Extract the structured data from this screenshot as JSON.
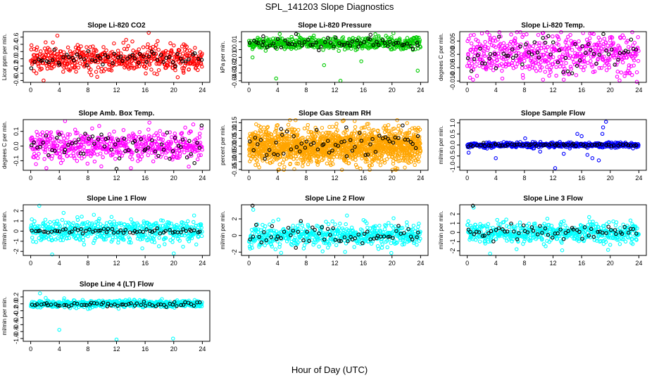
{
  "figure": {
    "title": "SPL_141203  Slope Diagnostics",
    "xlabel": "Hour of Day (UTC)"
  },
  "chart_data": [
    {
      "type": "scatter",
      "title": "Slope Li-820 CO2",
      "ylabel": "Licor ppm per min.",
      "xlim": [
        0,
        24
      ],
      "xticks": [
        0,
        4,
        8,
        12,
        16,
        20,
        24
      ],
      "ylim": [
        -0.65,
        0.75
      ],
      "yticks": [
        -0.6,
        -0.4,
        -0.2,
        0.0,
        0.2,
        0.4,
        0.6
      ],
      "ytick_labels": [
        "-0.6",
        "-0.4",
        "-0.2",
        "0.0",
        "0.2",
        "0.4",
        "0.6"
      ],
      "series": [
        {
          "color": "#ff0000",
          "n": 520,
          "center": 0.0,
          "spread": 0.17,
          "outliers": [
            [
              0.8,
              -0.4
            ],
            [
              1.8,
              -0.6
            ],
            [
              3.1,
              0.45
            ],
            [
              16.5,
              0.72
            ],
            [
              21.4,
              0.4
            ],
            [
              9.3,
              -0.5
            ]
          ]
        },
        {
          "color": "#000000",
          "n": 60,
          "center": 0.0,
          "spread": 0.12,
          "outliers": []
        }
      ]
    },
    {
      "type": "scatter",
      "title": "Slope Li-820 Pressure",
      "ylabel": "kPa per min.",
      "xlim": [
        0,
        24
      ],
      "xticks": [
        0,
        4,
        8,
        12,
        16,
        20,
        24
      ],
      "ylim": [
        -0.042,
        0.023
      ],
      "yticks": [
        -0.04,
        -0.03,
        -0.02,
        -0.01,
        0.0,
        0.01
      ],
      "ytick_labels": [
        "-0.04",
        "-0.03",
        "-0.02",
        "-0.01",
        "0",
        "0.01"
      ],
      "series": [
        {
          "color": "#00cc00",
          "n": 520,
          "center": 0.008,
          "spread": 0.004,
          "outliers": [
            [
              0.5,
              -0.01
            ],
            [
              3.8,
              -0.037
            ],
            [
              10.5,
              -0.02
            ],
            [
              12.8,
              -0.04
            ],
            [
              15.7,
              -0.015
            ],
            [
              23.6,
              -0.027
            ],
            [
              4.3,
              0.02
            ],
            [
              20.2,
              0.021
            ]
          ]
        },
        {
          "color": "#000000",
          "n": 60,
          "center": 0.007,
          "spread": 0.004,
          "outliers": [
            [
              2.0,
              0.017
            ],
            [
              6.6,
              0.02
            ],
            [
              17.0,
              0.019
            ]
          ]
        }
      ]
    },
    {
      "type": "scatter",
      "title": "Slope Li-820 Temp.",
      "ylabel": "degrees C per min.",
      "xlim": [
        0,
        24
      ],
      "xticks": [
        0,
        4,
        8,
        12,
        16,
        20,
        24
      ],
      "ylim": [
        -0.0105,
        0.0085
      ],
      "yticks": [
        -0.01,
        -0.005,
        0.0,
        0.005
      ],
      "ytick_labels": [
        "-0.010",
        "-0.005",
        "0.000",
        "0.005"
      ],
      "series": [
        {
          "color": "#ff00ff",
          "n": 520,
          "center": 0.0,
          "spread": 0.004,
          "outliers": [
            [
              4.5,
              0.0083
            ],
            [
              8.3,
              0.0075
            ],
            [
              10.6,
              -0.0095
            ],
            [
              13.5,
              -0.0095
            ],
            [
              16.2,
              0.008
            ],
            [
              21.3,
              -0.0098
            ]
          ]
        },
        {
          "color": "#000000",
          "n": 60,
          "center": 0.0,
          "spread": 0.003,
          "outliers": []
        }
      ]
    },
    {
      "type": "scatter",
      "title": "Slope Amb. Box Temp.",
      "ylabel": "degrees C per min.",
      "xlim": [
        0,
        24
      ],
      "xticks": [
        0,
        4,
        8,
        12,
        16,
        20,
        24
      ],
      "ylim": [
        -0.165,
        0.18
      ],
      "yticks": [
        -0.1,
        0.0,
        0.1
      ],
      "ytick_labels": [
        "-0.1",
        "0.0",
        "0.1"
      ],
      "series": [
        {
          "color": "#ff00ff",
          "n": 520,
          "center": 0.0,
          "spread": 0.05,
          "outliers": [
            [
              4.8,
              0.17
            ],
            [
              2.2,
              -0.15
            ],
            [
              16.6,
              0.16
            ],
            [
              22.1,
              -0.14
            ]
          ]
        },
        {
          "color": "#000000",
          "n": 60,
          "center": 0.0,
          "spread": 0.05,
          "outliers": [
            [
              12.0,
              -0.155
            ],
            [
              23.9,
              0.14
            ]
          ]
        }
      ]
    },
    {
      "type": "scatter",
      "title": "Slope Gas Stream RH",
      "ylabel": "percent per min.",
      "xlim": [
        0,
        24
      ],
      "xticks": [
        0,
        4,
        8,
        12,
        16,
        20,
        24
      ],
      "ylim": [
        -0.155,
        0.17
      ],
      "yticks": [
        -0.15,
        -0.1,
        -0.05,
        0.0,
        0.05,
        0.1,
        0.15
      ],
      "ytick_labels": [
        "-0.15",
        "-0.10",
        "-0.05",
        "0.00",
        "0.05",
        "0.10",
        "0.15"
      ],
      "series": [
        {
          "color": "#ffa500",
          "n": 1500,
          "center": 0.0,
          "spread": 0.055,
          "outliers": [
            [
              4.2,
              -0.15
            ],
            [
              1.0,
              0.14
            ],
            [
              13.1,
              0.16
            ],
            [
              20.5,
              -0.14
            ]
          ]
        },
        {
          "color": "#000000",
          "n": 60,
          "center": 0.0,
          "spread": 0.045,
          "outliers": [
            [
              4.5,
              0.11
            ],
            [
              13.6,
              0.12
            ]
          ]
        }
      ]
    },
    {
      "type": "scatter",
      "title": "Slope Sample Flow",
      "ylabel": "ml/min per min.",
      "xlim": [
        0,
        24
      ],
      "xticks": [
        0,
        4,
        8,
        12,
        16,
        20,
        24
      ],
      "ylim": [
        -1.15,
        1.15
      ],
      "yticks": [
        -1.0,
        -0.5,
        0.0,
        0.5,
        1.0
      ],
      "ytick_labels": [
        "-1.0",
        "-0.5",
        "0.0",
        "0.5",
        "1.0"
      ],
      "series": [
        {
          "color": "#0000ff",
          "n": 520,
          "center": 0.0,
          "spread": 0.06,
          "outliers": [
            [
              0.2,
              -0.35
            ],
            [
              4.0,
              -0.6
            ],
            [
              12.3,
              -1.05
            ],
            [
              15.4,
              0.5
            ],
            [
              16.0,
              0.4
            ],
            [
              17.5,
              -0.6
            ],
            [
              18.9,
              0.5
            ],
            [
              19.4,
              1.05
            ],
            [
              18.4,
              -0.7
            ],
            [
              13.5,
              -0.4
            ],
            [
              19.0,
              0.8
            ],
            [
              16.8,
              -0.45
            ],
            [
              8.1,
              0.3
            ],
            [
              10.2,
              -0.3
            ]
          ]
        },
        {
          "color": "#000000",
          "n": 60,
          "center": 0.0,
          "spread": 0.04,
          "outliers": []
        }
      ]
    },
    {
      "type": "scatter",
      "title": "Slope Line 1 Flow",
      "ylabel": "ml/min per min.",
      "xlim": [
        0,
        24
      ],
      "xticks": [
        0,
        4,
        8,
        12,
        16,
        20,
        24
      ],
      "ylim": [
        -2.4,
        2.6
      ],
      "yticks": [
        -2,
        -1,
        0,
        1,
        2
      ],
      "ytick_labels": [
        "-2",
        "-1",
        "0",
        "1",
        "2"
      ],
      "series": [
        {
          "color": "#00ffff",
          "n": 520,
          "center": 0.0,
          "spread": 0.55,
          "outliers": [
            [
              1.2,
              2.5
            ],
            [
              3.0,
              -2.3
            ],
            [
              4.6,
              1.8
            ],
            [
              20.0,
              -2.2
            ],
            [
              11.3,
              1.4
            ],
            [
              15.6,
              -1.7
            ]
          ]
        },
        {
          "color": "#000000",
          "n": 60,
          "center": 0.0,
          "spread": 0.12,
          "outliers": []
        }
      ]
    },
    {
      "type": "scatter",
      "title": "Slope Line 2 Flow",
      "ylabel": "ml/min per min.",
      "xlim": [
        0,
        24
      ],
      "xticks": [
        0,
        4,
        8,
        12,
        16,
        20,
        24
      ],
      "ylim": [
        -2.4,
        3.7
      ],
      "yticks": [
        -2,
        0,
        2
      ],
      "ytick_labels": [
        "-2",
        "0",
        "2"
      ],
      "series": [
        {
          "color": "#00ffff",
          "n": 520,
          "center": 0.0,
          "spread": 0.65,
          "outliers": [
            [
              0.6,
              3.1
            ],
            [
              13.7,
              2.4
            ],
            [
              19.9,
              -2.1
            ],
            [
              10.3,
              -1.9
            ]
          ]
        },
        {
          "color": "#000000",
          "n": 60,
          "center": 0.0,
          "spread": 0.6,
          "outliers": [
            [
              0.5,
              3.6
            ]
          ]
        }
      ]
    },
    {
      "type": "scatter",
      "title": "Slope Line 3 Flow",
      "ylabel": "ml/min per min.",
      "xlim": [
        0,
        24
      ],
      "xticks": [
        0,
        4,
        8,
        12,
        16,
        20,
        24
      ],
      "ylim": [
        -2.5,
        3.0
      ],
      "yticks": [
        -2,
        -1,
        0,
        1,
        2
      ],
      "ytick_labels": [
        "-2",
        "-1",
        "0",
        "1",
        "2"
      ],
      "series": [
        {
          "color": "#00ffff",
          "n": 520,
          "center": 0.0,
          "spread": 0.55,
          "outliers": [
            [
              0.9,
              2.7
            ],
            [
              3.2,
              -2.3
            ],
            [
              19.7,
              -1.9
            ]
          ]
        },
        {
          "color": "#000000",
          "n": 60,
          "center": 0.0,
          "spread": 0.45,
          "outliers": [
            [
              0.8,
              2.9
            ]
          ]
        }
      ]
    },
    {
      "type": "scatter",
      "title": "Slope Line 4 (LT) Flow",
      "ylabel": "ml/min per min.",
      "xlim": [
        0,
        24
      ],
      "xticks": [
        0,
        4,
        8,
        12,
        16,
        20,
        24
      ],
      "ylim": [
        -1.08,
        0.38
      ],
      "yticks": [
        -1.0,
        -0.8,
        -0.6,
        -0.4,
        -0.2,
        0.0,
        0.2
      ],
      "ytick_labels": [
        "-1.0",
        "-0.8",
        "-0.6",
        "-0.4",
        "-0.2",
        "0.0",
        "0.2"
      ],
      "series": [
        {
          "color": "#00ffff",
          "n": 520,
          "center": 0.0,
          "spread": 0.05,
          "outliers": [
            [
              1.3,
              0.3
            ],
            [
              4.0,
              -0.75
            ],
            [
              12.0,
              -1.03
            ],
            [
              19.9,
              -1.0
            ],
            [
              2.1,
              0.17
            ]
          ]
        },
        {
          "color": "#000000",
          "n": 60,
          "center": -0.02,
          "spread": 0.04,
          "outliers": []
        }
      ]
    }
  ]
}
